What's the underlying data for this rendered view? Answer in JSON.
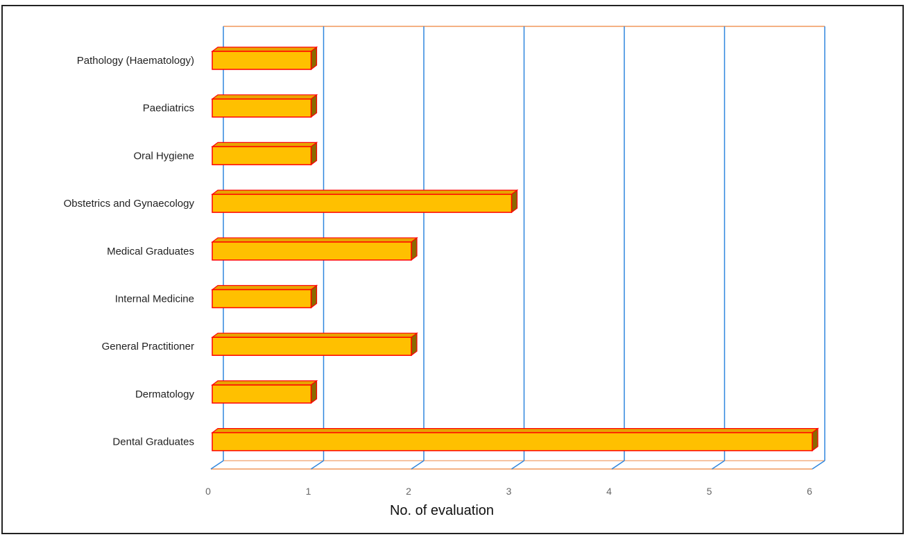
{
  "chart_data": {
    "type": "bar",
    "orientation": "horizontal",
    "style": "3d",
    "categories": [
      "Pathology (Haematology)",
      "Paediatrics",
      "Oral Hygiene",
      "Obstetrics and Gynaecology",
      "Medical Graduates",
      "Internal Medicine",
      "General Practitioner",
      "Dermatology",
      "Dental Graduates"
    ],
    "values": [
      1,
      1,
      1,
      3,
      2,
      1,
      2,
      1,
      6
    ],
    "xlabel": "No. of evaluation",
    "ylabel": "",
    "xlim": [
      0,
      6
    ],
    "xticks": [
      "0",
      "1",
      "2",
      "3",
      "4",
      "5",
      "6"
    ],
    "grid": true,
    "legend": "none",
    "colors": {
      "bar_face": "#FFC000",
      "bar_edge": "#FF0000",
      "bar_top": "#E8A400",
      "bar_side": "#8B6A00",
      "gridline": "#2E86DE",
      "floor": "#F4B183"
    }
  }
}
